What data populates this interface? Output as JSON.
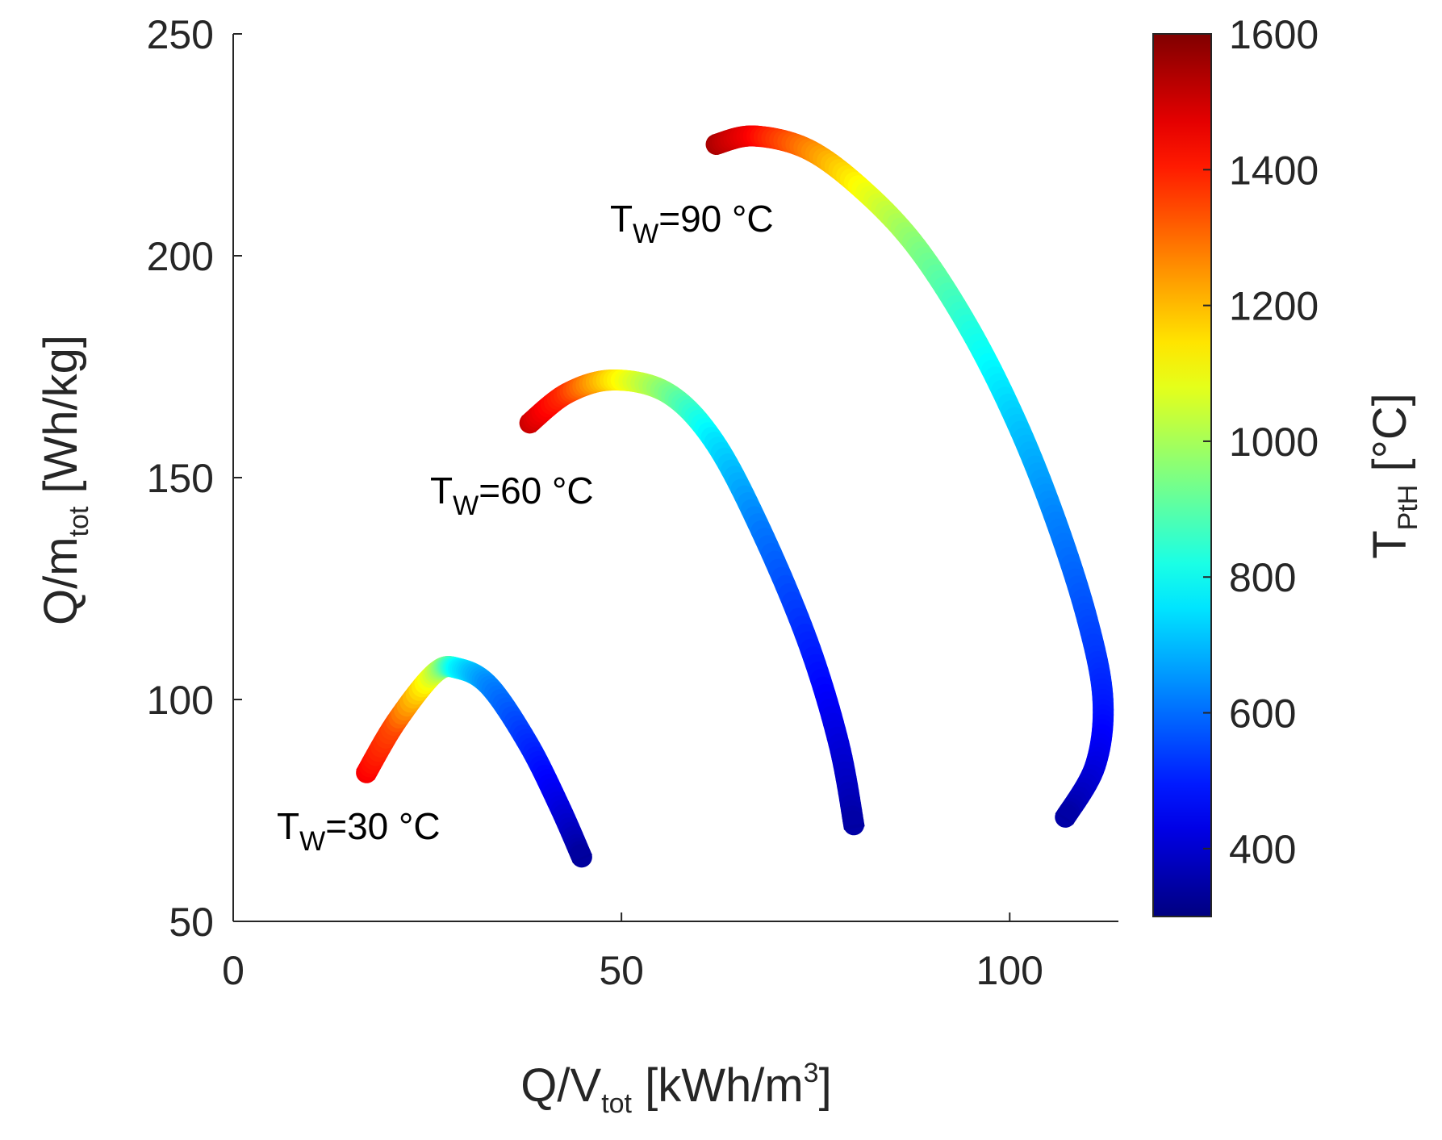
{
  "chart_data": {
    "type": "line",
    "title": "",
    "xlabel": {
      "main": "Q/V",
      "sub": "tot",
      "unit": " [kWh/m",
      "sup": "3",
      "close": "]"
    },
    "ylabel": {
      "main": "Q/m",
      "sub": "tot",
      "unit": " [Wh/kg]"
    },
    "xlim": [
      0,
      114
    ],
    "ylim": [
      50,
      250
    ],
    "xticks": [
      0,
      50,
      100
    ],
    "xtick_labels": [
      "0",
      "50",
      "100"
    ],
    "yticks": [
      50,
      100,
      150,
      200,
      250
    ],
    "ytick_labels": [
      "50",
      "100",
      "150",
      "200",
      "250"
    ],
    "grid": false,
    "colorbar": {
      "label_main": "T",
      "label_sub": "PtH",
      "label_unit": " [°C]",
      "range": [
        300,
        1600
      ],
      "ticks": [
        400,
        600,
        800,
        1000,
        1200,
        1400,
        1600
      ],
      "tick_labels": [
        "400",
        "600",
        "800",
        "1000",
        "1200",
        "1400",
        "1600"
      ],
      "colormap": "jet"
    },
    "series": [
      {
        "name": "TW=30 °C",
        "label_main": "T",
        "label_sub": "W",
        "label_rest": "=30 °C",
        "x": [
          17.0,
          21.0,
          26.0,
          29.0,
          33.0,
          38.0,
          42.0,
          45.0
        ],
        "y": [
          83,
          95,
          106,
          107,
          103,
          90,
          76,
          64
        ],
        "color_value": [
          1460,
          1340,
          1050,
          780,
          640,
          520,
          430,
          330
        ]
      },
      {
        "name": "TW=60 °C",
        "label_main": "T",
        "label_sub": "W",
        "label_rest": "=60 °C",
        "x": [
          38.0,
          43.0,
          49.0,
          56.0,
          62.0,
          68.0,
          74.0,
          78.0,
          80.0
        ],
        "y": [
          162,
          169,
          172,
          169,
          158,
          138,
          113,
          90,
          71
        ],
        "color_value": [
          1520,
          1380,
          1150,
          950,
          760,
          620,
          510,
          420,
          340
        ]
      },
      {
        "name": "TW=90 °C",
        "label_main": "T",
        "label_sub": "W",
        "label_rest": "=90 °C",
        "x": [
          62.0,
          67.0,
          74.0,
          81.0,
          88.0,
          95.0,
          101.0,
          106.0,
          110.0,
          112.0,
          111.0,
          107.0
        ],
        "y": [
          225,
          227,
          224,
          215,
          202,
          183,
          162,
          140,
          118,
          100,
          85,
          73
        ],
        "color_value": [
          1560,
          1450,
          1280,
          1110,
          960,
          830,
          720,
          630,
          560,
          500,
          430,
          340
        ]
      }
    ]
  }
}
